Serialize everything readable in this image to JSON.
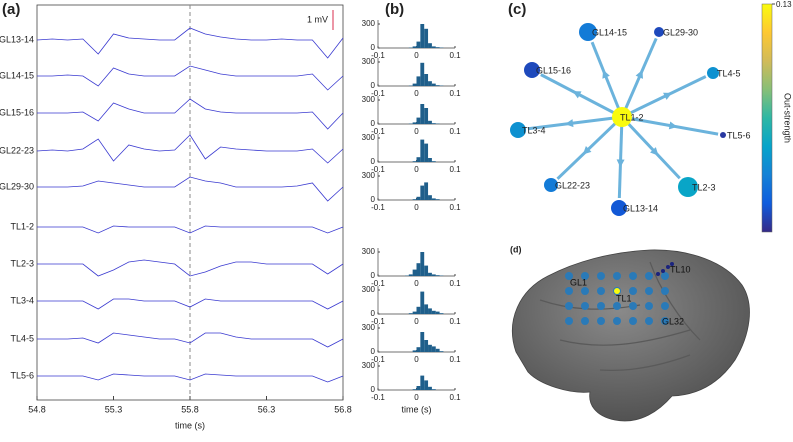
{
  "chart_data": [
    {
      "type": "line",
      "panel_label": "(a)",
      "xlabel": "time (s)",
      "color": "#3a3ad0",
      "vline": 55.8,
      "scale_bar": {
        "label": "1 mV",
        "value": 1,
        "color": "#e0506a"
      },
      "x": [
        54.8,
        54.9,
        55.0,
        55.1,
        55.2,
        55.3,
        55.4,
        55.5,
        55.6,
        55.7,
        55.8,
        55.9,
        56.0,
        56.1,
        56.2,
        56.3,
        56.4,
        56.5,
        56.6,
        56.7,
        56.8
      ],
      "xlim": [
        54.8,
        56.8
      ],
      "xticks": [
        54.8,
        55.3,
        55.8,
        56.3,
        56.8
      ],
      "series": [
        {
          "name": "GL13-14",
          "values": [
            0,
            0.05,
            0,
            0.05,
            -0.7,
            0.3,
            0.1,
            0.05,
            0,
            0,
            0.6,
            0.3,
            0.15,
            0.05,
            0,
            0,
            0.05,
            0,
            0,
            -0.9,
            0.1
          ]
        },
        {
          "name": "GL14-15",
          "values": [
            0,
            0,
            0.05,
            0,
            -0.5,
            0.4,
            0.1,
            0,
            0,
            0,
            0.5,
            0.3,
            0.1,
            0,
            0,
            0,
            0,
            0,
            0.1,
            -0.7,
            0
          ]
        },
        {
          "name": "GL15-16",
          "values": [
            0,
            0,
            0,
            0.05,
            -0.4,
            0.5,
            0.2,
            0,
            0,
            0,
            0.7,
            0.2,
            0.05,
            0,
            0,
            0,
            0,
            0,
            0.05,
            -0.8,
            0
          ]
        },
        {
          "name": "GL22-23",
          "values": [
            0,
            0.05,
            0,
            0.1,
            0.6,
            -0.5,
            0.3,
            0.1,
            0,
            0.05,
            0.8,
            -0.4,
            0.2,
            0.1,
            0.05,
            0,
            0,
            0,
            0.1,
            -0.6,
            0.1
          ]
        },
        {
          "name": "GL29-30",
          "values": [
            0,
            0,
            0,
            0.05,
            0.3,
            0.2,
            0.1,
            0,
            0,
            0,
            0.5,
            0.3,
            0.2,
            0,
            0,
            0,
            0,
            0.05,
            0.2,
            -0.7,
            0
          ]
        },
        {
          "name": "TL1-2",
          "values": [
            0,
            0,
            0,
            0,
            -0.3,
            0.05,
            0,
            0,
            0,
            0,
            -0.3,
            0.05,
            0,
            0,
            0,
            0,
            0,
            0,
            0,
            -0.3,
            0
          ]
        },
        {
          "name": "TL2-3",
          "values": [
            0,
            0,
            0,
            0,
            -0.6,
            -0.3,
            0.1,
            0.2,
            0.1,
            0,
            -0.6,
            -0.4,
            -0.1,
            0.1,
            0.1,
            0,
            0,
            0,
            0,
            -0.5,
            0
          ]
        },
        {
          "name": "TL3-4",
          "values": [
            0,
            0,
            0,
            0,
            -0.4,
            0.1,
            0.1,
            0,
            0,
            0,
            -0.3,
            0.1,
            0,
            0,
            0,
            0,
            0,
            0,
            0,
            -0.4,
            0
          ]
        },
        {
          "name": "TL4-5",
          "values": [
            0,
            0,
            0,
            0.05,
            -0.2,
            0.3,
            0.2,
            0.1,
            0,
            0,
            -0.2,
            0.3,
            0.3,
            0.1,
            0,
            0,
            0,
            0,
            0,
            -0.4,
            0
          ]
        },
        {
          "name": "TL5-6",
          "values": [
            0,
            0,
            0,
            0,
            -0.2,
            0.1,
            0.05,
            0,
            0,
            0,
            -0.2,
            0.1,
            0.05,
            0,
            0,
            0,
            0,
            0,
            0,
            -0.3,
            0
          ]
        }
      ]
    },
    {
      "type": "histogram",
      "panel_label": "(b)",
      "xlabel": "time (s)",
      "color": "#1f5f8b",
      "bins": [
        -0.1,
        -0.09,
        -0.08,
        -0.07,
        -0.06,
        -0.05,
        -0.04,
        -0.03,
        -0.02,
        -0.01,
        0,
        0.01,
        0.02,
        0.03,
        0.04,
        0.05,
        0.06,
        0.07,
        0.08,
        0.09,
        0.1
      ],
      "xlim": [
        -0.1,
        0.1
      ],
      "xticks": [
        -0.1,
        0,
        0.1
      ],
      "ylim": [
        0,
        350
      ],
      "yticks": [
        0,
        300
      ],
      "series": [
        {
          "counts": [
            0,
            0,
            0,
            0,
            0,
            0,
            0,
            0,
            5,
            20,
            80,
            300,
            240,
            60,
            20,
            10,
            5,
            0,
            0,
            0
          ]
        },
        {
          "counts": [
            0,
            0,
            0,
            0,
            0,
            0,
            0,
            0,
            5,
            30,
            120,
            290,
            150,
            60,
            30,
            10,
            5,
            0,
            0,
            0
          ]
        },
        {
          "counts": [
            0,
            0,
            0,
            0,
            0,
            0,
            0,
            0,
            5,
            20,
            80,
            250,
            200,
            40,
            10,
            5,
            0,
            0,
            0,
            0
          ]
        },
        {
          "counts": [
            0,
            0,
            0,
            0,
            0,
            0,
            0,
            0,
            0,
            10,
            60,
            280,
            230,
            50,
            10,
            0,
            0,
            0,
            0,
            0
          ]
        },
        {
          "counts": [
            0,
            0,
            0,
            0,
            0,
            0,
            0,
            0,
            0,
            10,
            40,
            180,
            220,
            60,
            20,
            10,
            0,
            0,
            0,
            0
          ]
        },
        {
          "counts": [
            0,
            0,
            0,
            0,
            0,
            0,
            0,
            5,
            20,
            80,
            160,
            300,
            130,
            40,
            20,
            10,
            5,
            0,
            0,
            0
          ]
        },
        {
          "counts": [
            0,
            0,
            0,
            0,
            0,
            0,
            0,
            0,
            10,
            30,
            90,
            280,
            120,
            70,
            40,
            30,
            10,
            0,
            0,
            0
          ]
        },
        {
          "counts": [
            0,
            0,
            0,
            0,
            0,
            0,
            0,
            0,
            0,
            20,
            60,
            250,
            150,
            90,
            70,
            40,
            10,
            0,
            0,
            0
          ]
        },
        {
          "counts": [
            0,
            0,
            0,
            0,
            0,
            0,
            0,
            0,
            0,
            10,
            50,
            180,
            120,
            40,
            10,
            0,
            0,
            0,
            0,
            0
          ]
        }
      ]
    },
    {
      "type": "network",
      "panel_label": "(c)",
      "colorbar_label": "Out-strength",
      "clim": [
        0,
        0.13
      ],
      "cticks": [
        0.13
      ],
      "colormap": [
        "#352a87",
        "#0f5cdd",
        "#1481d6",
        "#06a4ca",
        "#2eb7a4",
        "#87bf77",
        "#d1bb59",
        "#fec832",
        "#f9fb0e"
      ],
      "edge_color": "#6bb3dc",
      "nodes": [
        {
          "label": "TL1-2",
          "value": 0.13
        },
        {
          "label": "GL14-15",
          "value": 0.03
        },
        {
          "label": "GL29-30",
          "value": 0.01
        },
        {
          "label": "GL15-16",
          "value": 0.01
        },
        {
          "label": "TL4-5",
          "value": 0.04
        },
        {
          "label": "TL3-4",
          "value": 0.04
        },
        {
          "label": "TL5-6",
          "value": 0.005
        },
        {
          "label": "GL22-23",
          "value": 0.03
        },
        {
          "label": "GL13-14",
          "value": 0.015
        },
        {
          "label": "TL2-3",
          "value": 0.05
        }
      ],
      "edges": [
        [
          0,
          1
        ],
        [
          0,
          2
        ],
        [
          0,
          3
        ],
        [
          0,
          4
        ],
        [
          0,
          5
        ],
        [
          0,
          6
        ],
        [
          0,
          7
        ],
        [
          0,
          8
        ],
        [
          0,
          9
        ]
      ]
    },
    {
      "type": "image",
      "panel_label": "(d)",
      "labels": [
        "GL1",
        "TL1",
        "GL32",
        "TL10"
      ],
      "electrode_color": "#2a7ab8"
    }
  ]
}
